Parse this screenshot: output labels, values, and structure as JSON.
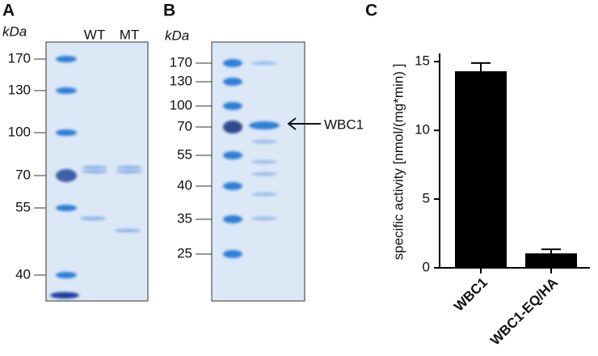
{
  "panels": {
    "a": {
      "letter": "A",
      "unit": "kDa",
      "lanes": [
        "WT",
        "MT"
      ],
      "markers": [
        "170",
        "130",
        "100",
        "70",
        "55",
        "40"
      ]
    },
    "b": {
      "letter": "B",
      "unit": "kDa",
      "markers": [
        "170",
        "130",
        "100",
        "70",
        "55",
        "40",
        "35",
        "25"
      ],
      "annotation": "WBC1"
    }
  },
  "chart_data": {
    "type": "bar",
    "letter": "C",
    "ylabel": "specific activity [nmol/(mg*min) ]",
    "categories": [
      "WBC1",
      "WBC1-EQ/HA"
    ],
    "values": [
      14.3,
      1.05
    ],
    "errors": [
      0.6,
      0.3
    ],
    "color": "#000000",
    "ylim": [
      0,
      15.6
    ],
    "yticks": [
      0,
      5,
      10,
      15
    ]
  }
}
